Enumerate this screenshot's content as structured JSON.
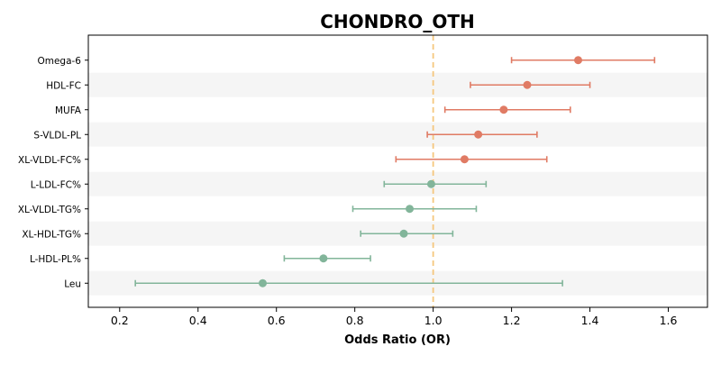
{
  "chart_data": {
    "type": "forest",
    "title": "CHONDRO_OTH",
    "xlabel": "Odds Ratio (OR)",
    "ylabel": "",
    "xlim": [
      0.12,
      1.7
    ],
    "xticks": [
      "0.2",
      "0.4",
      "0.6",
      "0.8",
      "1.0",
      "1.2",
      "1.4",
      "1.6"
    ],
    "reference_line": 1.0,
    "reference_line_color": "#f5c77e",
    "grid": false,
    "row_band_color": "#f5f5f5",
    "colors": {
      "risk": "#e07b64",
      "protective": "#82b59a"
    },
    "rows": [
      {
        "label": "Omega-6",
        "or": 1.37,
        "lower": 1.2,
        "upper": 1.565,
        "group": "risk"
      },
      {
        "label": "HDL-FC",
        "or": 1.24,
        "lower": 1.095,
        "upper": 1.4,
        "group": "risk"
      },
      {
        "label": "MUFA",
        "or": 1.18,
        "lower": 1.03,
        "upper": 1.35,
        "group": "risk"
      },
      {
        "label": "S-VLDL-PL",
        "or": 1.115,
        "lower": 0.985,
        "upper": 1.265,
        "group": "risk"
      },
      {
        "label": "XL-VLDL-FC%",
        "or": 1.08,
        "lower": 0.905,
        "upper": 1.29,
        "group": "risk"
      },
      {
        "label": "L-LDL-FC%",
        "or": 0.995,
        "lower": 0.875,
        "upper": 1.135,
        "group": "protective"
      },
      {
        "label": "XL-VLDL-TG%",
        "or": 0.94,
        "lower": 0.795,
        "upper": 1.11,
        "group": "protective"
      },
      {
        "label": "XL-HDL-TG%",
        "or": 0.925,
        "lower": 0.815,
        "upper": 1.05,
        "group": "protective"
      },
      {
        "label": "L-HDL-PL%",
        "or": 0.72,
        "lower": 0.62,
        "upper": 0.84,
        "group": "protective"
      },
      {
        "label": "Leu",
        "or": 0.565,
        "lower": 0.24,
        "upper": 1.33,
        "group": "protective"
      }
    ]
  }
}
